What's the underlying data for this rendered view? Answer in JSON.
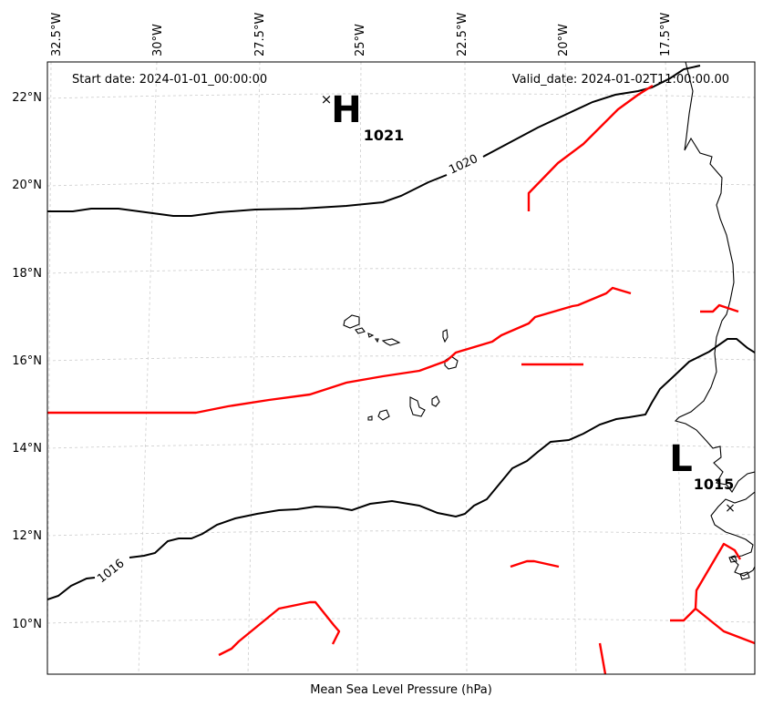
{
  "header": {
    "start_date": "Start date: 2024-01-01_00:00:00",
    "valid_date": "Valid_date: 2024-01-02T11:00:00.00"
  },
  "footer": {
    "caption": "Mean Sea Level Pressure (hPa)"
  },
  "axes": {
    "lon_labels": [
      "32.5°W",
      "30°W",
      "27.5°W",
      "25°W",
      "22.5°W",
      "20°W",
      "17.5°W"
    ],
    "lat_labels": [
      "22°N",
      "20°N",
      "18°N",
      "16°N",
      "14°N",
      "12°N",
      "10°N"
    ]
  },
  "pressure_centers": {
    "high": {
      "letter": "H",
      "value": "1021",
      "marker": "×"
    },
    "low": {
      "letter": "L",
      "value": "1015",
      "marker": "×"
    }
  },
  "isobars": {
    "label_1020": "1020",
    "label_1016": "1016"
  },
  "colors": {
    "isobar": "#000000",
    "front": "#ff0000",
    "grid": "#cccccc",
    "coastline": "#000000"
  }
}
